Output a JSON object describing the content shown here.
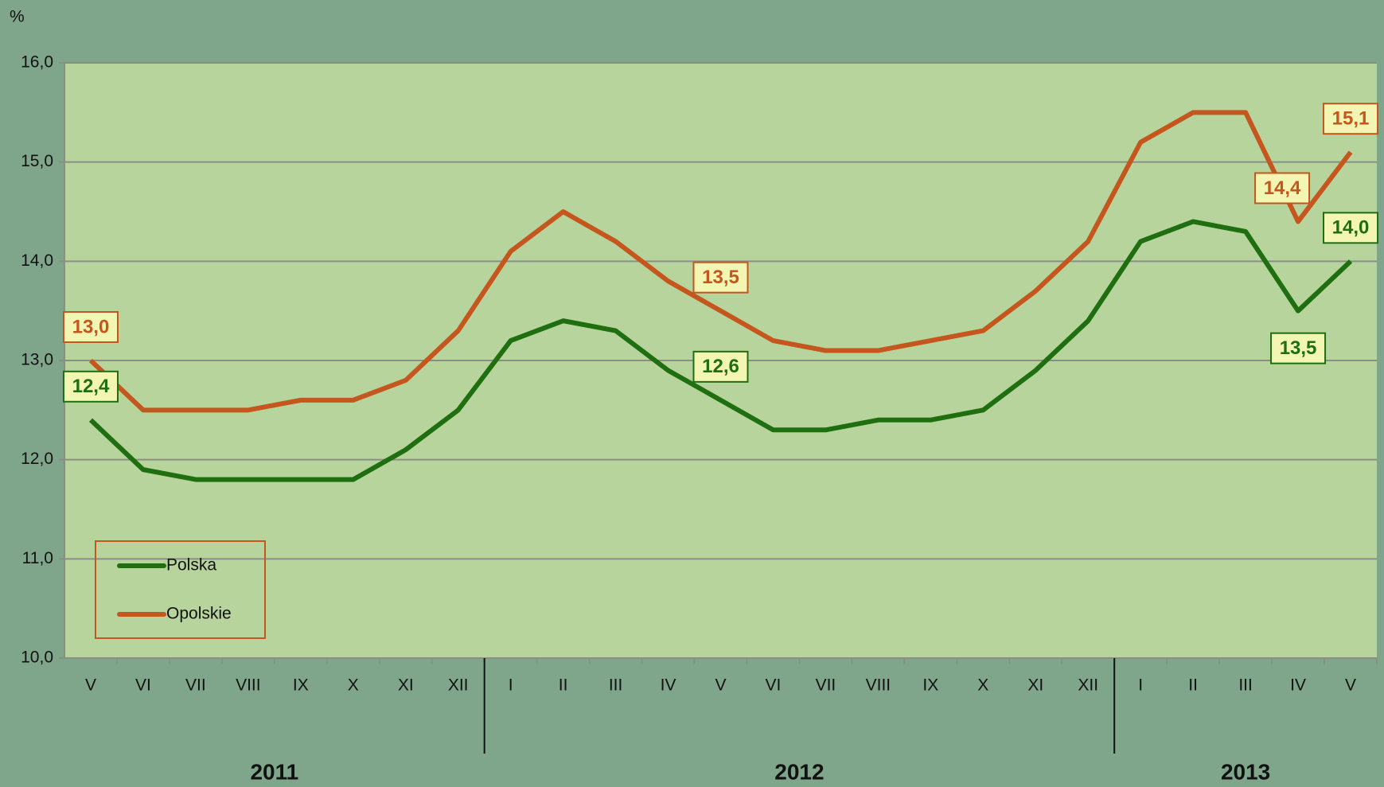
{
  "chart_data": {
    "type": "line",
    "y_label": "%",
    "groups": [
      {
        "label": "2011",
        "categories": [
          "V",
          "VI",
          "VII",
          "VIII",
          "IX",
          "X",
          "XI",
          "XII"
        ]
      },
      {
        "label": "2012",
        "categories": [
          "I",
          "II",
          "III",
          "IV",
          "V",
          "VI",
          "VII",
          "VIII",
          "IX",
          "X",
          "XI",
          "XII"
        ]
      },
      {
        "label": "2013",
        "categories": [
          "I",
          "II",
          "III",
          "IV",
          "V"
        ]
      }
    ],
    "series": [
      {
        "name": "Polska",
        "color": "#1f6e10",
        "values": [
          12.4,
          11.9,
          11.8,
          11.8,
          11.8,
          11.8,
          12.1,
          12.5,
          13.2,
          13.4,
          13.3,
          12.9,
          12.6,
          12.3,
          12.3,
          12.4,
          12.4,
          12.5,
          12.9,
          13.4,
          14.2,
          14.4,
          14.3,
          13.5,
          14.0
        ],
        "value_labels": [
          "12,4",
          null,
          null,
          null,
          null,
          null,
          null,
          null,
          null,
          null,
          null,
          null,
          "12,6",
          null,
          null,
          null,
          null,
          null,
          null,
          null,
          null,
          null,
          null,
          "13,5",
          "14,0"
        ]
      },
      {
        "name": "Opolskie",
        "color": "#c4561e",
        "values": [
          13.0,
          12.5,
          12.5,
          12.5,
          12.6,
          12.6,
          12.8,
          13.3,
          14.1,
          14.5,
          14.2,
          13.8,
          13.5,
          13.2,
          13.1,
          13.1,
          13.2,
          13.3,
          13.7,
          14.2,
          15.2,
          15.5,
          15.5,
          14.4,
          15.1
        ],
        "value_labels": [
          "13,0",
          null,
          null,
          null,
          null,
          null,
          null,
          null,
          null,
          null,
          null,
          null,
          "13,5",
          null,
          null,
          null,
          null,
          null,
          null,
          null,
          null,
          null,
          null,
          "14,4",
          "15,1"
        ]
      }
    ],
    "ylim": [
      10,
      16
    ],
    "yticks": [
      {
        "value": 10,
        "label": "10,0"
      },
      {
        "value": 11,
        "label": "11,0"
      },
      {
        "value": 12,
        "label": "12,0"
      },
      {
        "value": 13,
        "label": "13,0"
      },
      {
        "value": 14,
        "label": "14,0"
      },
      {
        "value": 15,
        "label": "15,0"
      },
      {
        "value": 16,
        "label": "16,0"
      }
    ],
    "grid": true,
    "legend": "lower left"
  }
}
